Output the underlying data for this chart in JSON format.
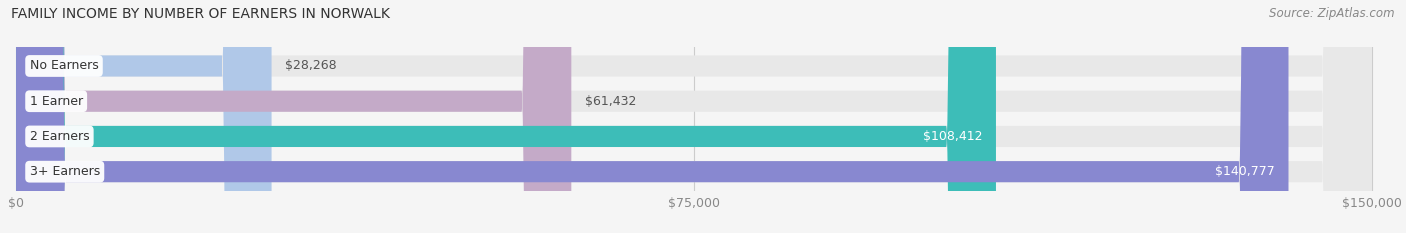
{
  "title": "FAMILY INCOME BY NUMBER OF EARNERS IN NORWALK",
  "source": "Source: ZipAtlas.com",
  "categories": [
    "No Earners",
    "1 Earner",
    "2 Earners",
    "3+ Earners"
  ],
  "values": [
    28268,
    61432,
    108412,
    140777
  ],
  "bar_colors": [
    "#b0c8e8",
    "#c4aac8",
    "#3dbdb8",
    "#8888d0"
  ],
  "value_label_colors": [
    "#555555",
    "#555555",
    "#ffffff",
    "#ffffff"
  ],
  "x_max": 150000,
  "x_ticks": [
    0,
    75000,
    150000
  ],
  "x_tick_labels": [
    "$0",
    "$75,000",
    "$150,000"
  ],
  "background_color": "#f5f5f5",
  "bar_bg_color": "#e8e8e8",
  "title_fontsize": 10,
  "source_fontsize": 8.5,
  "label_fontsize": 9,
  "tick_fontsize": 9,
  "category_fontsize": 9
}
